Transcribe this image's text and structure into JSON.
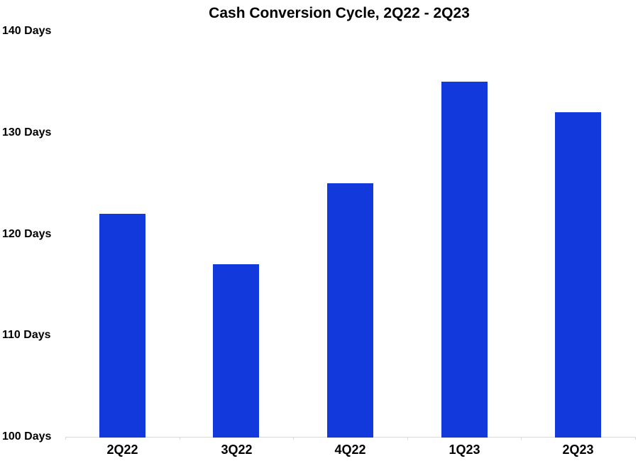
{
  "chart_data": {
    "type": "bar",
    "title": "Cash Conversion Cycle, 2Q22 - 2Q23",
    "categories": [
      "2Q22",
      "3Q22",
      "4Q22",
      "1Q23",
      "2Q23"
    ],
    "values": [
      122,
      117,
      125,
      135,
      132
    ],
    "value_unit": "Days",
    "ylim": [
      100,
      140
    ],
    "yticks": [
      140,
      130,
      120,
      110,
      100
    ],
    "ytick_labels": [
      "140 Days",
      "130 Days",
      "120 Days",
      "110 Days",
      "100 Days"
    ],
    "xlabel": "",
    "ylabel": "",
    "grid": false,
    "legend": false,
    "colors": {
      "bar": "#1239db",
      "axis": "#d9d9d9",
      "text": "#000000",
      "background": "#ffffff"
    }
  }
}
